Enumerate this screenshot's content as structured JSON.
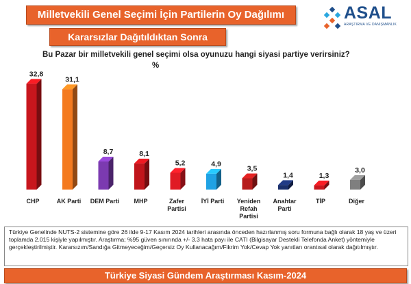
{
  "header": {
    "title": "Milletvekili Genel Seçimi İçin Partilerin Oy Dağılımı",
    "subtitle": "Kararsızlar Dağıtıldıktan Sonra"
  },
  "logo": {
    "name": "ASAL",
    "tagline": "ARAŞTIRMA VE DANIŞMANLIK",
    "icon": "asal-logo-icon"
  },
  "chart_data": {
    "type": "bar",
    "title": "Bu Pazar bir milletvekili genel seçimi olsa oyunuzu hangi siyasi partiye verirsiniz?",
    "ylabel": "%",
    "xlabel": "",
    "ylim": [
      0,
      35
    ],
    "grid": false,
    "legend": "none",
    "categories": [
      [
        "CHP"
      ],
      [
        "AK Parti"
      ],
      [
        "DEM Parti"
      ],
      [
        "MHP"
      ],
      [
        "Zafer",
        "Partisi"
      ],
      [
        "İYİ Parti"
      ],
      [
        "Yeniden",
        "Refah",
        "Partisi"
      ],
      [
        "Anahtar",
        "Parti"
      ],
      [
        "TİP"
      ],
      [
        "Diğer"
      ]
    ],
    "values": [
      32.8,
      31.1,
      8.7,
      8.1,
      5.2,
      4.9,
      3.5,
      1.4,
      1.3,
      3.0
    ],
    "value_labels": [
      "32,8",
      "31,1",
      "8,7",
      "8,1",
      "5,2",
      "4,9",
      "3,5",
      "1,4",
      "1,3",
      "3,0"
    ],
    "colors": [
      "#c8161d",
      "#f47a1f",
      "#7b3ab0",
      "#c0151b",
      "#e01b24",
      "#1fa2e4",
      "#b71c1c",
      "#1a2f6b",
      "#c8161d",
      "#7f7f7f"
    ]
  },
  "note": "Türkiye Genelinde NUTS-2 sistemine göre 26 ilde 9-17 Kasım 2024 tarihleri arasında önceden hazırlanmış soru formuna bağlı olarak 18 yaş ve üzeri toplamda 2.015 kişiyle yapılmıştır. Araştırma; %95 güven sınırında +/- 3.3 hata payı ile CATI (Bilgisayar Destekli Telefonda Anket) yöntemiyle gerçekleştirilmiştir. Kararsızım/Sandığa Gitmeyeceğim/Geçersiz Oy Kullanacağım/Fikrim Yok/Cevap Yok yanıtları orantısal olarak dağıtılmıştır.",
  "footer": {
    "label": "Türkiye Siyasi Gündem Araştırması Kasım-2024"
  }
}
